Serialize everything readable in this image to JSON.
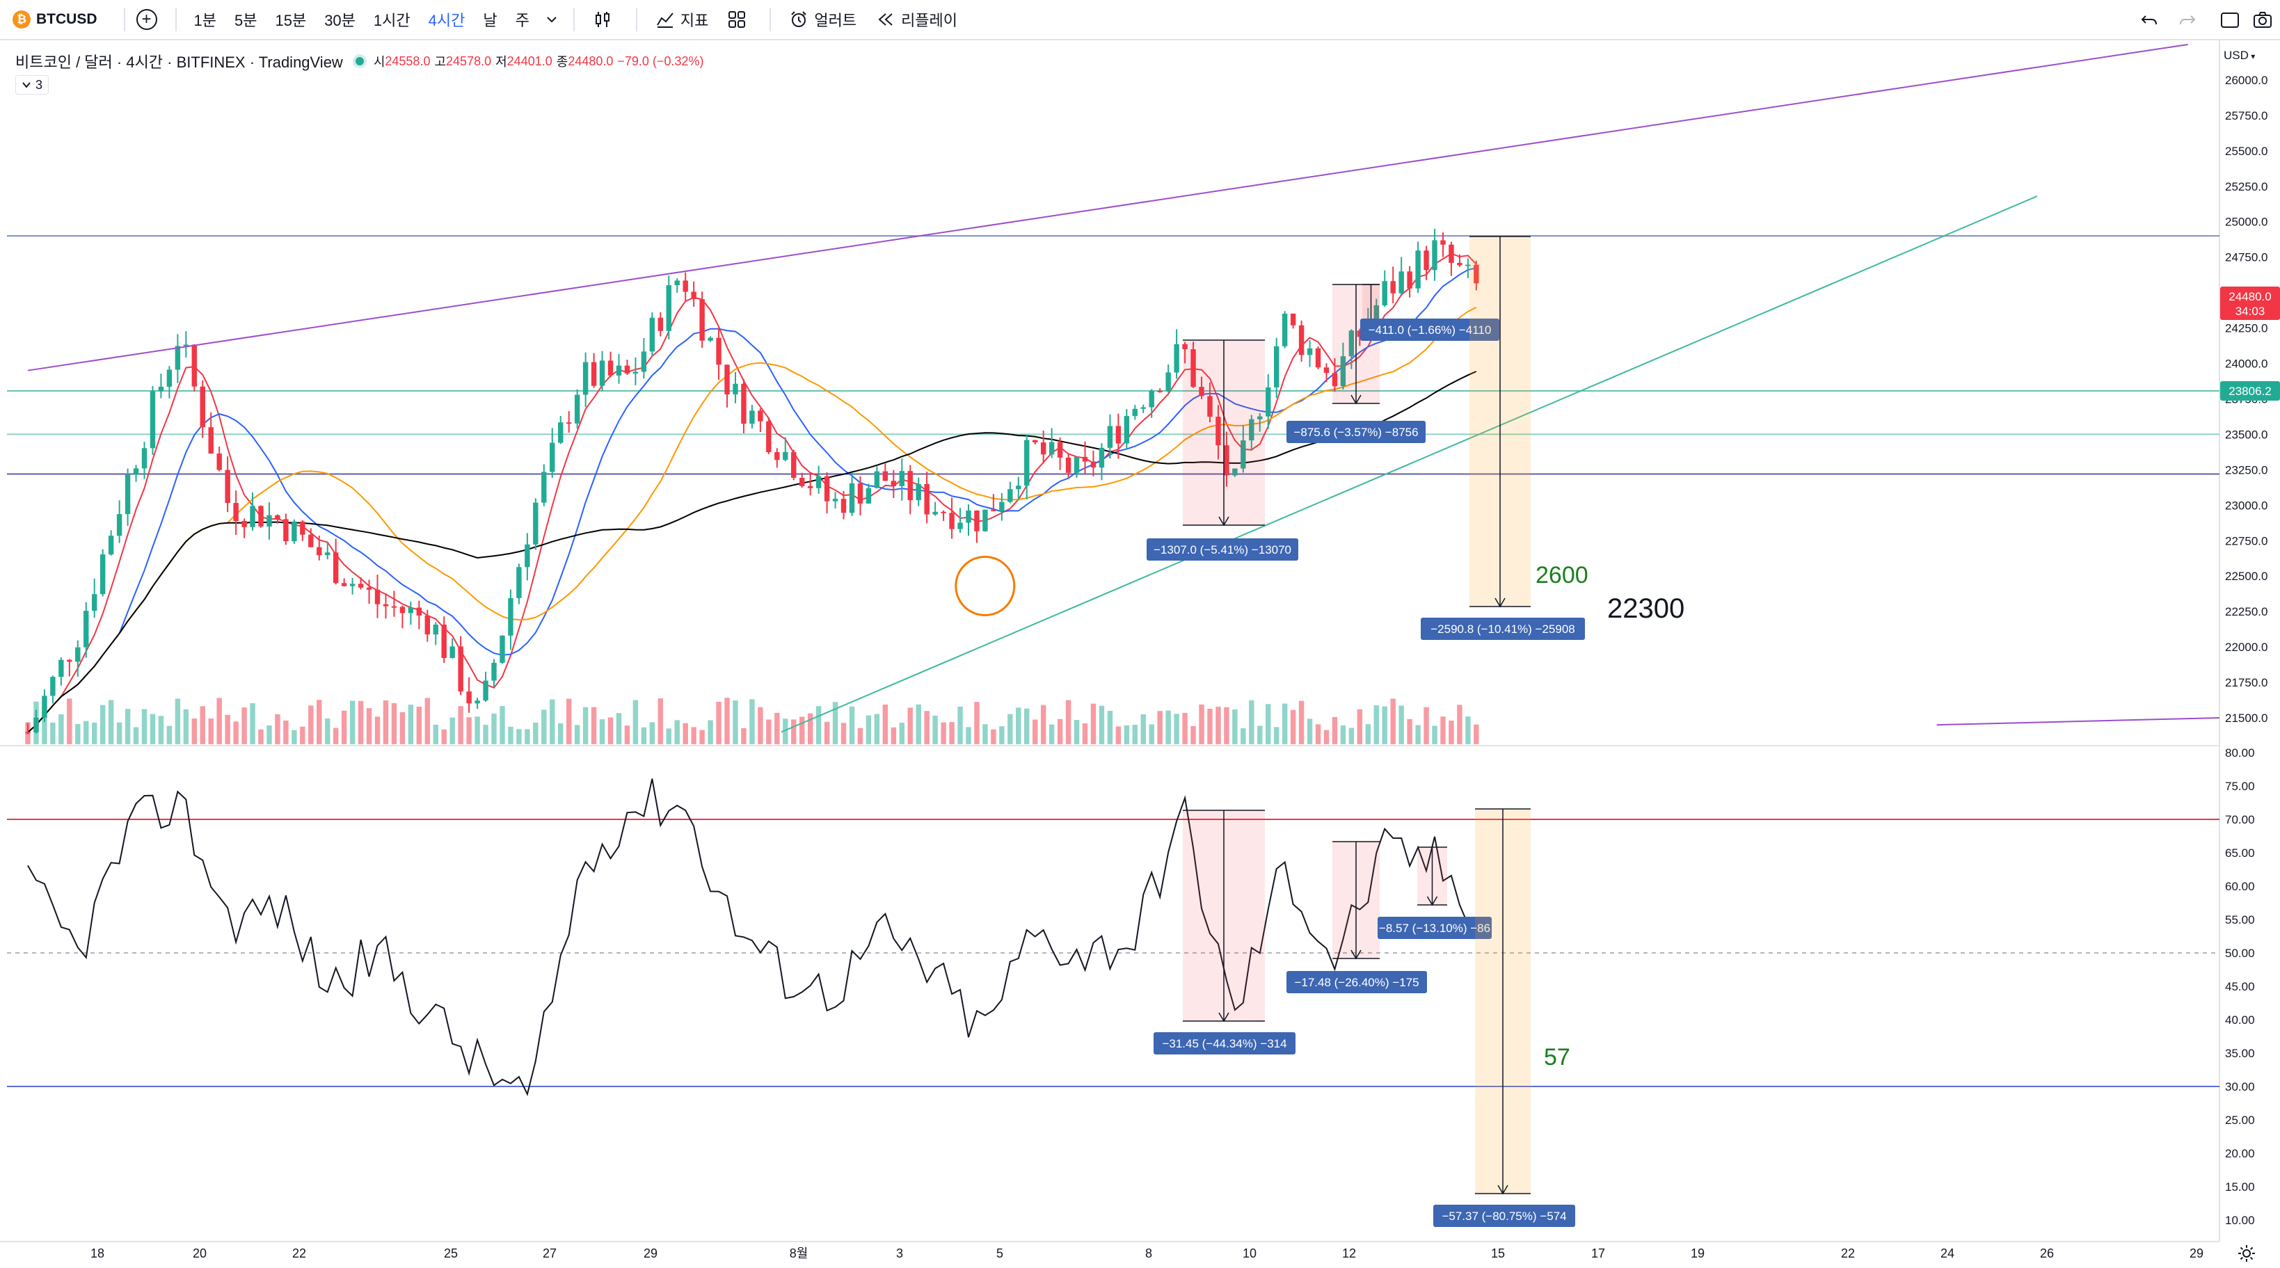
{
  "toolbar": {
    "symbol": "BTCUSD",
    "coin_glyph": "₿",
    "timeframes": [
      {
        "label": "1분",
        "active": false
      },
      {
        "label": "5분",
        "active": false
      },
      {
        "label": "15분",
        "active": false
      },
      {
        "label": "30분",
        "active": false
      },
      {
        "label": "1시간",
        "active": false
      },
      {
        "label": "4시간",
        "active": true
      },
      {
        "label": "날",
        "active": false
      },
      {
        "label": "주",
        "active": false
      }
    ],
    "indicators_label": "지표",
    "alert_label": "얼러트",
    "replay_label": "리플레이"
  },
  "legend": {
    "title": "비트코인 / 달러 · 4시간 · BITFINEX · TradingView",
    "open_key": "시",
    "open": "24558.0",
    "high_key": "고",
    "high": "24578.0",
    "low_key": "저",
    "low": "24401.0",
    "close_key": "종",
    "close": "24480.0",
    "change": "−79.0 (−0.32%)",
    "indicator_count": "3"
  },
  "currency": "USD",
  "price_tags": {
    "last_price": "24480.0",
    "countdown": "34:03",
    "line_price": "23806.2"
  },
  "annotations": {
    "price_target_small": "2600",
    "price_target_big": "22300",
    "rsi_target": "57"
  },
  "measure_labels": {
    "price": [
      "−411.0 (−1.66%) −4110",
      "−875.6 (−3.57%) −8756",
      "−1307.0 (−5.41%) −13070",
      "−2590.8 (−10.41%) −25908"
    ],
    "rsi": [
      "−8.57 (−13.10%) −86",
      "−17.48 (−26.40%) −175",
      "−31.45 (−44.34%) −314",
      "−57.37 (−80.75%) −574"
    ]
  },
  "chart_data": [
    {
      "type": "candlestick",
      "title": "비트코인 / 달러 · 4시간 · BITFINEX",
      "y_axis_ticks": [
        26000,
        25750,
        25500,
        25250,
        25000,
        24750,
        24500,
        24250,
        24000,
        23750,
        23500,
        23250,
        23000,
        22750,
        22500,
        22250,
        22000,
        21750,
        21500
      ],
      "ylim": [
        21400,
        26200
      ],
      "x_tick_labels": [
        "18",
        "20",
        "22",
        "25",
        "27",
        "29",
        "8월",
        "3",
        "5",
        "8",
        "10",
        "12",
        "15",
        "17",
        "19",
        "22",
        "24",
        "26",
        "29"
      ],
      "close_series_sampled": [
        [
          "Jul 17",
          21400
        ],
        [
          "Jul 18",
          22100
        ],
        [
          "Jul 19",
          23200
        ],
        [
          "Jul 20",
          24200
        ],
        [
          "Jul 21",
          23000
        ],
        [
          "Jul 22",
          22900
        ],
        [
          "Jul 23",
          22600
        ],
        [
          "Jul 24",
          22300
        ],
        [
          "Jul 25",
          22200
        ],
        [
          "Jul 26",
          21500
        ],
        [
          "Jul 27",
          22900
        ],
        [
          "Jul 28",
          23900
        ],
        [
          "Jul 29",
          23900
        ],
        [
          "Jul 30",
          24650
        ],
        [
          "Jul 31",
          23800
        ],
        [
          "Aug 1",
          23400
        ],
        [
          "Aug 2",
          23000
        ],
        [
          "Aug 3",
          23200
        ],
        [
          "Aug 4",
          23000
        ],
        [
          "Aug 5",
          22900
        ],
        [
          "Aug 6",
          23400
        ],
        [
          "Aug 7",
          23200
        ],
        [
          "Aug 8",
          23700
        ],
        [
          "Aug 9",
          24100
        ],
        [
          "Aug 10",
          23100
        ],
        [
          "Aug 11",
          24300
        ],
        [
          "Aug 12",
          23900
        ],
        [
          "Aug 13",
          24500
        ],
        [
          "Aug 14",
          24800
        ],
        [
          "Aug 15",
          24480
        ]
      ],
      "horizontal_lines": [
        {
          "price": 24900,
          "color": "#7e8fd6"
        },
        {
          "price": 23806.2,
          "color": "#66c2b0"
        },
        {
          "price": 23500,
          "color": "#8fcfc4"
        },
        {
          "price": 23220,
          "color": "#5f5fa8"
        }
      ],
      "trendlines": [
        {
          "from": [
            "Jul 17",
            23950
          ],
          "to": [
            "Aug 29",
            26250
          ],
          "color": "#9c4dcc"
        },
        {
          "from": [
            "Aug 1",
            21400
          ],
          "to": [
            "Aug 26",
            25180
          ],
          "color": "#3fb8a0"
        }
      ],
      "moving_averages": [
        {
          "color": "#f23645"
        },
        {
          "color": "#2962ff"
        },
        {
          "color": "#ff9800"
        },
        {
          "color": "#000000"
        }
      ],
      "volume": true
    },
    {
      "type": "line",
      "title": "",
      "y_axis_ticks": [
        80,
        75,
        70,
        65,
        60,
        55,
        50,
        45,
        40,
        35,
        30,
        25,
        20,
        15,
        10
      ],
      "ylim": [
        8,
        80
      ],
      "reference_lines": [
        70,
        50,
        30
      ],
      "values_sampled": [
        [
          "Jul 17",
          60
        ],
        [
          "Jul 18",
          50
        ],
        [
          "Jul 19",
          68
        ],
        [
          "Jul 20",
          73
        ],
        [
          "Jul 21",
          55
        ],
        [
          "Jul 22",
          57
        ],
        [
          "Jul 23",
          45
        ],
        [
          "Jul 24",
          50
        ],
        [
          "Jul 25",
          41
        ],
        [
          "Jul 26",
          33
        ],
        [
          "Jul 27",
          28
        ],
        [
          "Jul 28",
          62
        ],
        [
          "Jul 29",
          72
        ],
        [
          "Jul 30",
          73
        ],
        [
          "Jul 31",
          55
        ],
        [
          "Aug 1",
          47
        ],
        [
          "Aug 2",
          44
        ],
        [
          "Aug 3",
          53
        ],
        [
          "Aug 4",
          47
        ],
        [
          "Aug 5",
          38
        ],
        [
          "Aug 6",
          53
        ],
        [
          "Aug 7",
          50
        ],
        [
          "Aug 8",
          52
        ],
        [
          "Aug 9",
          71
        ],
        [
          "Aug 10",
          40
        ],
        [
          "Aug 11",
          63
        ],
        [
          "Aug 12",
          49
        ],
        [
          "Aug 13",
          65
        ],
        [
          "Aug 14",
          64
        ],
        [
          "Aug 15",
          55
        ]
      ]
    }
  ]
}
